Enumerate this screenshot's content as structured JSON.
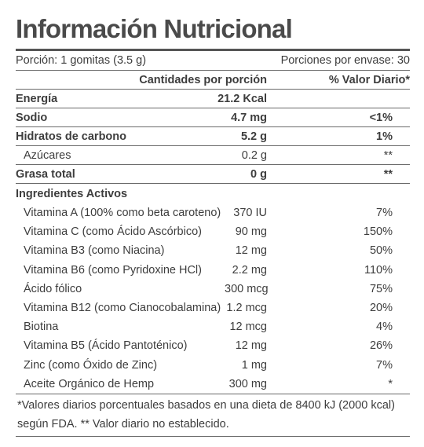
{
  "title": "Información Nutricional",
  "serving": {
    "size": "Porción: 1 gomitas (3.5 g)",
    "per_container": "Porciones por envase: 30"
  },
  "columns": {
    "amount": "Cantidades por porción",
    "dv": "% Valor Diario*"
  },
  "nutrients": [
    {
      "name": "Energía",
      "amount": "21.2 Kcal",
      "dv": "",
      "bold": true
    },
    {
      "name": "Sodio",
      "amount": "4.7 mg",
      "dv": "<1%",
      "bold": true
    },
    {
      "name": "Hidratos de carbono",
      "amount": "5.2 g",
      "dv": "1%",
      "bold": true
    },
    {
      "name": "Azúcares",
      "amount": "0.2 g",
      "dv": "**",
      "bold": false
    },
    {
      "name": "Grasa total",
      "amount": "0 g",
      "dv": "**",
      "bold": true
    }
  ],
  "ingredients_title": "Ingredientes Activos",
  "ingredients": [
    {
      "name": "Vitamina A (100% como beta caroteno)",
      "amount": "370 IU",
      "dv": "7%"
    },
    {
      "name": "Vitamina C (como Ácido Ascórbico)",
      "amount": "90 mg",
      "dv": "150%"
    },
    {
      "name": "Vitamina B3 (como Niacina)",
      "amount": "12 mg",
      "dv": "50%"
    },
    {
      "name": "Vitamina B6 (como Pyridoxine HCl)",
      "amount": "2.2 mg",
      "dv": "110%"
    },
    {
      "name": "Ácido fólico",
      "amount": "300 mcg",
      "dv": "75%"
    },
    {
      "name": "Vitamina B12 (como Cianocobalamina)",
      "amount": "1.2 mcg",
      "dv": "20%"
    },
    {
      "name": "Biotina",
      "amount": "12 mcg",
      "dv": "4%"
    },
    {
      "name": "Vitamina B5 (Ácido Pantoténico)",
      "amount": "12 mg",
      "dv": "26%"
    },
    {
      "name": "Zinc (como Óxido de Zinc)",
      "amount": "1 mg",
      "dv": "7%"
    },
    {
      "name": "Aceite Orgánico de Hemp",
      "amount": "300 mg",
      "dv": "*"
    }
  ],
  "footnote": "*Valores diarios porcentuales basados en una dieta de 8400 kJ (2000 kcal) según FDA. ** Valor diario no establecido."
}
